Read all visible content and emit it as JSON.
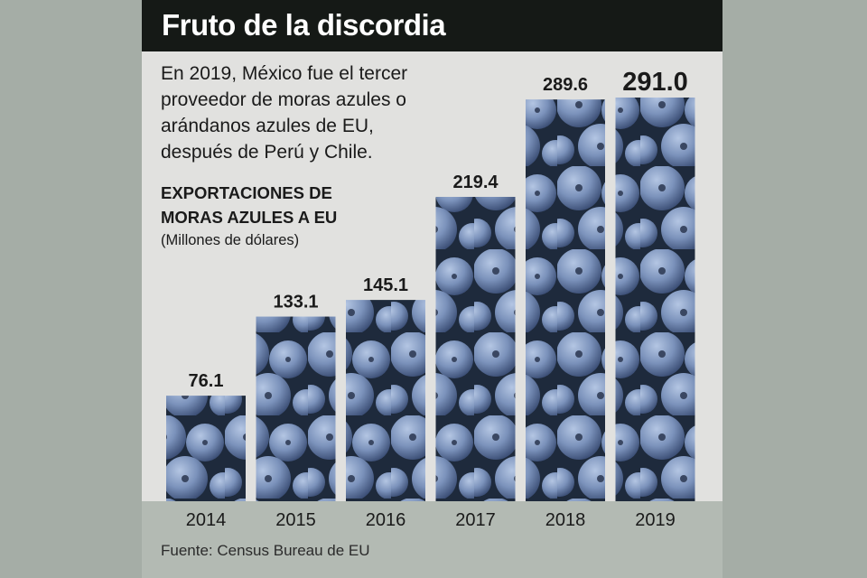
{
  "header": {
    "title": "Fruto de la discordia"
  },
  "intro_text": "En 2019, México fue el tercer proveedor de moras azules o arándanos azules de EU, después de Perú y Chile.",
  "series_title": "EXPORTACIONES DE MORAS AZULES A EU",
  "unit_note": "(Millones de dólares)",
  "source_note": "Fuente: Census Bureau de EU",
  "colors": {
    "title_bar": "#151916",
    "panel_background": "#e1e1df",
    "outer_background": "#a5ada6",
    "footer_band": "#b3bab3",
    "bar_fill_dark": "#1e2a3c",
    "berry_blue": "#7b92bb"
  },
  "chart_data": {
    "type": "bar",
    "title": "",
    "xlabel": "",
    "ylabel": "",
    "categories": [
      "2014",
      "2015",
      "2016",
      "2017",
      "2018",
      "2019"
    ],
    "values": [
      76.1,
      133.1,
      145.1,
      219.4,
      289.6,
      291.0
    ],
    "value_labels": [
      "76.1",
      "133.1",
      "145.1",
      "219.4",
      "289.6",
      "291.0"
    ],
    "ylim": [
      0,
      291.0
    ],
    "grid": false,
    "bar_texture": "blueberry photo"
  }
}
